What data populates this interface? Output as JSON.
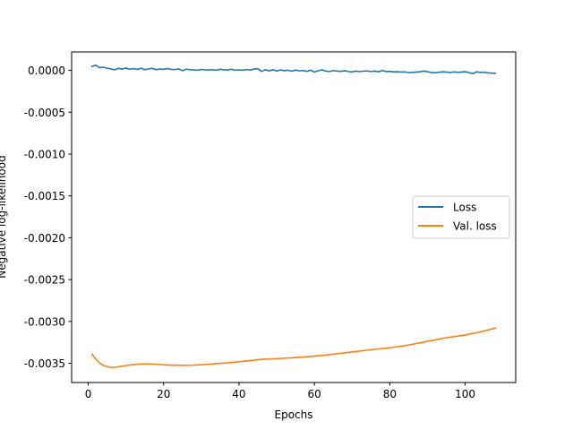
{
  "chart_data": {
    "type": "line",
    "title": "",
    "xlabel": "Epochs",
    "ylabel": "Negative log-likelihood",
    "xlim": [
      -4.4,
      113.4
    ],
    "ylim": [
      -0.00373,
      0.00022
    ],
    "xticks": [
      0,
      20,
      40,
      60,
      80,
      100
    ],
    "xtick_labels": [
      "0",
      "20",
      "40",
      "60",
      "80",
      "100"
    ],
    "yticks": [
      0.0,
      -0.0005,
      -0.001,
      -0.0015,
      -0.002,
      -0.0025,
      -0.003,
      -0.0035
    ],
    "ytick_labels": [
      "0.0000",
      "-0.0005",
      "-0.0010",
      "-0.0015",
      "-0.0020",
      "-0.0025",
      "-0.0030",
      "-0.0035"
    ],
    "legend_position": "center-right",
    "grid": false,
    "series": [
      {
        "name": "Loss",
        "color": "#1f77b4",
        "x": [
          1,
          2,
          3,
          4,
          5,
          6,
          7,
          8,
          9,
          10,
          11,
          12,
          13,
          14,
          15,
          16,
          17,
          18,
          19,
          20,
          21,
          22,
          23,
          24,
          25,
          26,
          27,
          28,
          29,
          30,
          31,
          32,
          33,
          34,
          35,
          36,
          37,
          38,
          39,
          40,
          41,
          42,
          43,
          44,
          45,
          46,
          47,
          48,
          49,
          50,
          51,
          52,
          53,
          54,
          55,
          56,
          57,
          58,
          59,
          60,
          61,
          62,
          63,
          64,
          65,
          66,
          67,
          68,
          69,
          70,
          71,
          72,
          73,
          74,
          75,
          76,
          77,
          78,
          79,
          80,
          81,
          82,
          83,
          84,
          85,
          86,
          87,
          88,
          89,
          90,
          91,
          92,
          93,
          94,
          95,
          96,
          97,
          98,
          99,
          100,
          101,
          102,
          103,
          104,
          105,
          106,
          107,
          108
        ],
        "y": [
          4.8e-05,
          6.2e-05,
          3.2e-05,
          3.8e-05,
          2.6e-05,
          1.8e-05,
          6e-06,
          2.4e-05,
          1.6e-05,
          2.8e-05,
          1.4e-05,
          2.2e-05,
          1.2e-05,
          2.6e-05,
          8e-06,
          1.8e-05,
          2.4e-05,
          8e-06,
          1.6e-05,
          1.2e-05,
          2.2e-05,
          1.2e-05,
          1e-05,
          1.8e-05,
          -4e-06,
          1.4e-05,
          8e-06,
          6e-06,
          2e-06,
          1.2e-05,
          6e-06,
          4e-06,
          8e-06,
          2e-06,
          1.2e-05,
          8e-06,
          4e-06,
          1.4e-05,
          2e-06,
          6e-06,
          2e-06,
          1e-05,
          4e-06,
          1.6e-05,
          2e-05,
          -1.2e-05,
          8e-06,
          -6e-06,
          8e-06,
          -8e-06,
          6e-06,
          -4e-06,
          2e-06,
          -1e-05,
          4e-06,
          -6e-06,
          -2e-06,
          -1.2e-05,
          2e-06,
          -2e-05,
          -4e-06,
          6e-06,
          -8e-06,
          -1.4e-05,
          -2e-06,
          -8e-06,
          -1.2e-05,
          -4e-06,
          -1.4e-05,
          -1.8e-05,
          -8e-06,
          -1.4e-05,
          -1e-05,
          -6e-06,
          -1.4e-05,
          -8e-06,
          -1.6e-05,
          -2e-06,
          -1.4e-05,
          -1.2e-05,
          -1.8e-05,
          -1.6e-05,
          -2e-05,
          -1.8e-05,
          -2.6e-05,
          -2.4e-05,
          -2e-05,
          -1.6e-05,
          -8e-06,
          -1.6e-05,
          -2.4e-05,
          -2.8e-05,
          -2.2e-05,
          -1.8e-05,
          -2e-05,
          -2.6e-05,
          -1.8e-05,
          -2.4e-05,
          -2e-05,
          -1.6e-05,
          -2.6e-05,
          -4e-05,
          -1.8e-05,
          -2.4e-05,
          -2.2e-05,
          -3e-05,
          -3.2e-05,
          -3.4e-05
        ]
      },
      {
        "name": "Val. loss",
        "color": "#ff7f0e",
        "x": [
          1,
          2,
          3,
          4,
          5,
          6,
          7,
          8,
          10,
          12,
          14,
          16,
          18,
          20,
          22,
          25,
          28,
          31,
          34,
          37,
          40,
          43,
          46,
          50,
          55,
          60,
          65,
          70,
          75,
          80,
          85,
          90,
          95,
          100,
          104,
          108
        ],
        "y": [
          -0.00339,
          -0.00345,
          -0.003495,
          -0.003525,
          -0.00354,
          -0.003548,
          -0.003548,
          -0.003542,
          -0.003528,
          -0.003515,
          -0.003508,
          -0.003508,
          -0.003512,
          -0.003518,
          -0.003522,
          -0.003525,
          -0.003522,
          -0.003515,
          -0.003505,
          -0.003495,
          -0.003482,
          -0.003468,
          -0.003452,
          -0.003445,
          -0.003432,
          -0.003415,
          -0.003392,
          -0.003365,
          -0.003338,
          -0.003315,
          -0.003282,
          -0.003238,
          -0.003195,
          -0.003162,
          -0.003125,
          -0.00308
        ]
      }
    ]
  }
}
